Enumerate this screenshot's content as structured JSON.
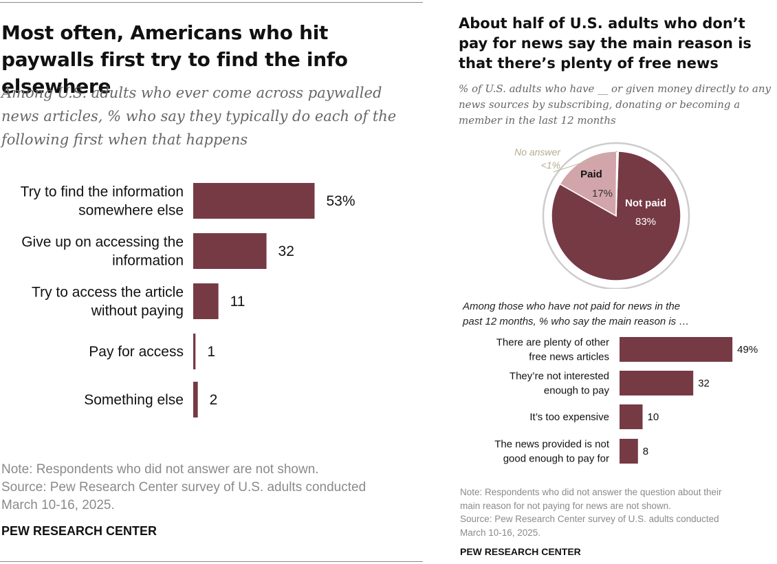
{
  "left": {
    "title": "Most often, Americans who hit paywalls first try to find the info elsewhere",
    "subtitle": "Among U.S. adults who ever come across paywalled news articles, % who say they typically do each of the following first when that happens",
    "note_lines": [
      "Note: Respondents who did not answer are not shown.",
      "Source: Pew Research Center survey of U.S. adults conducted",
      "March 10-16, 2025."
    ],
    "brand": "PEW RESEARCH CENTER"
  },
  "right": {
    "title": "About half of U.S. adults who don’t pay for news say the main reason is that there’s plenty of free news",
    "subtitle": "% of U.S. adults who have __ or given money directly to any news sources by subscribing, donating or becoming a member in the last 12 months",
    "bar_intro_lines": [
      "Among those who have not paid for news in the",
      "past 12 months, % who say the main reason is …"
    ],
    "note_lines": [
      "Note: Respondents who did not answer the question about their",
      "main reason for not paying for news are not shown.",
      "Source: Pew Research Center survey of U.S. adults conducted",
      "March 10-16, 2025."
    ],
    "brand": "PEW RESEARCH CENTER"
  },
  "chart_data": [
    {
      "type": "bar",
      "orientation": "horizontal",
      "categories": [
        [
          "Try to find the information",
          "somewhere else"
        ],
        [
          "Give up on accessing the",
          "information"
        ],
        [
          "Try to access the article",
          "without paying"
        ],
        [
          "Pay for access"
        ],
        [
          "Something else"
        ]
      ],
      "values": [
        53,
        32,
        11,
        1,
        2
      ],
      "value_labels": [
        "53%",
        "32",
        "11",
        "1",
        "2"
      ],
      "color": "#763a45"
    },
    {
      "type": "pie",
      "slices": [
        {
          "label": "Not paid",
          "value": 83,
          "value_label": "83%",
          "color": "#763a45"
        },
        {
          "label": "Paid",
          "value": 17,
          "value_label": "17%",
          "color": "#d2a5ab"
        },
        {
          "label": "No answer",
          "value": 0.4,
          "value_label": "<1%",
          "color": "#ffffff"
        }
      ],
      "outer_ring_color": "#cccccc"
    },
    {
      "type": "bar",
      "orientation": "horizontal",
      "categories": [
        [
          "There are plenty of other",
          "free news articles"
        ],
        [
          "They’re not interested",
          "enough to pay"
        ],
        [
          "It’s too expensive"
        ],
        [
          "The news provided is not",
          "good enough to pay for"
        ]
      ],
      "values": [
        49,
        32,
        10,
        8
      ],
      "value_labels": [
        "49%",
        "32",
        "10",
        "8"
      ],
      "color": "#763a45"
    }
  ]
}
